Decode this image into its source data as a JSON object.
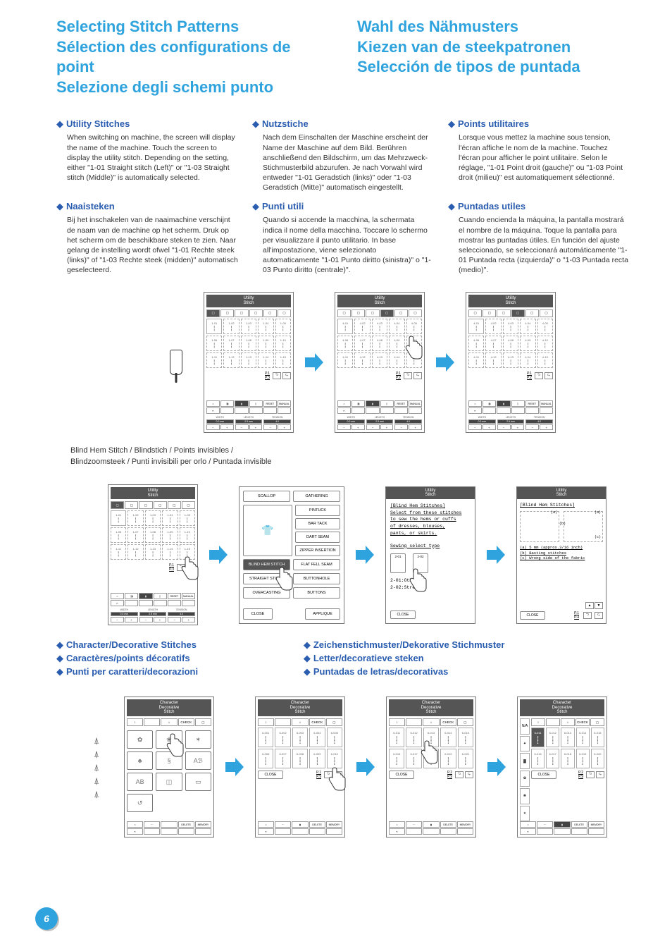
{
  "colors": {
    "header_blue": "#2ea3dd",
    "heading_blue": "#2a5db0",
    "accent_circle": "#bde4f4",
    "arrow_fill": "#2ea3dd",
    "text": "#333333",
    "border": "#777777"
  },
  "page_number": "6",
  "header": {
    "left": [
      "Selecting Stitch Patterns",
      "Sélection des configurations de point",
      "Selezione degli schemi punto"
    ],
    "right": [
      "Wahl des Nähmusters",
      "Kiezen van de steekpatronen",
      "Selección de tipos de puntada"
    ]
  },
  "utility": {
    "en": {
      "title": "Utility Stitches",
      "body": "When switching on machine, the screen will display the name of the machine. Touch the screen to display the utility stitch. Depending on the setting, either \"1-01 Straight stitch (Left)\" or \"1-03 Straight stitch (Middle)\" is automatically selected."
    },
    "de": {
      "title": "Nutzstiche",
      "body": "Nach dem Einschalten der Maschine erscheint der Name der Maschine auf dem Bild. Berühren anschließend den Bildschirm, um das Mehrzweck-Stichmusterbild abzurufen. Je nach Vorwahl wird entweder \"1-01 Geradstich (links)\" oder \"1-03 Geradstich (Mitte)\" automatisch eingestellt."
    },
    "fr": {
      "title": "Points utilitaires",
      "body": "Lorsque vous mettez la machine sous tension, l'écran affiche le nom de la machine. Touchez l'écran pour afficher le point utilitaire. Selon le réglage, \"1-01 Point droit (gauche)\" ou \"1-03 Point droit (milieu)\" est automatiquement sélectionné."
    },
    "nl": {
      "title": "Naaisteken",
      "body": "Bij het inschakelen van de naaimachine verschijnt de naam van de machine op het scherm. Druk op het scherm om de beschikbare steken te zien. Naar gelang de instelling wordt ofwel \"1-01 Rechte steek (links)\" of \"1-03 Rechte steek (midden)\" automatisch geselecteerd."
    },
    "it": {
      "title": "Punti utili",
      "body": "Quando si accende la macchina, la schermata indica il nome della macchina. Toccare lo schermo per visualizzare il punto utilitario. In base all'impostazione, viene selezionato automaticamente \"1-01 Punto diritto (sinistra)\" o \"1-03 Punto diritto (centrale)\"."
    },
    "es": {
      "title": "Puntadas utiles",
      "body": "Cuando encienda la máquina, la pantalla mostrará el nombre de la máquina. Toque la pantalla para mostrar las puntadas útiles. En función del ajuste seleccionado, se seleccionará automáticamente \"1-01 Puntada recta (izquierda)\" o \"1-03 Puntada recta (medio)\"."
    }
  },
  "screens_row1": {
    "header": "Utility\nStitch",
    "cells": [
      "1-01",
      "1-02",
      "1-03",
      "1-04",
      "1-05",
      "1-06",
      "1-07",
      "1-08",
      "1-09",
      "1-10",
      "1-11",
      "1-12",
      "1-13",
      "1-14",
      "1-15"
    ],
    "cells2": [
      "4-01",
      "4-02",
      "4-03",
      "4-04",
      "4-05",
      "4-06",
      "4-07",
      "4-08",
      "4-09",
      "4-10",
      "4-11",
      "4-12",
      "4-13",
      "4-14",
      "4-15"
    ],
    "page_a": "P.1\nP.3",
    "page_b": "P.1\nP.2",
    "page_c": "P.1\nP.2",
    "wlt": {
      "w": "WIDTH",
      "l": "LENGTH",
      "t": "TENSION",
      "wv": "0.0",
      "lv": "2.5",
      "tv": "4.0"
    },
    "reset": "RESET",
    "manual": "MANUAL"
  },
  "blindhem_caption": "Blind Hem Stitch / Blindstich / Points invisibles /\nBlindzoomsteek / Punti invisibili per orlo / Puntada invisible",
  "option_screen": {
    "rows": [
      [
        "SCALLOP",
        "GATHERING"
      ],
      [
        "",
        "PINTUCK"
      ],
      [
        "",
        "BAR TACK"
      ],
      [
        "",
        "DART SEAM"
      ],
      [
        "",
        "ZIPPER INSERTION"
      ],
      [
        "BLIND HEM STITCH",
        "FLAT FELL SEAM"
      ],
      [
        "STRAIGHT STITCH",
        "BUTTONHOLE"
      ],
      [
        "OVERCASTING",
        "BUTTONS"
      ]
    ],
    "close": "CLOSE",
    "applique": "APPLIQUE"
  },
  "info_screen": {
    "header": "Utility\nStitch",
    "lines": [
      "[Blind Hem Stitches]",
      "Select from these stitches",
      "to sew the hems or cuffs",
      "of dresses, blouses,",
      "pants, or skirts."
    ],
    "subhead": "Sewing select type",
    "opts": [
      "2-01",
      "2-02"
    ],
    "opt_labels": [
      "2-01:Othe…",
      "2-02:Stret…"
    ],
    "close": "CLOSE"
  },
  "diagram_screen": {
    "header": "Utility\nStitch",
    "title": "[Blind Hem Stitches]",
    "lines": [
      "(a) 5 mm (approx.3/16 inch)",
      "(b) Basting stitches",
      "(c) Wrong side of the fabric"
    ],
    "labels": [
      "(a)",
      "(b)",
      "(c)"
    ],
    "page": "P.1\nP.4",
    "close": "CLOSE"
  },
  "decorative": {
    "left": [
      "Character/Decorative Stitches",
      "Caractères/points décoratifs",
      "Punti per caratteri/decorazioni"
    ],
    "right": [
      "Zeichenstichmuster/Dekorative Stichmuster",
      "Letter/decoratieve steken",
      "Puntadas de letras/decorativas"
    ]
  },
  "deco_screen": {
    "header": "Character\nDecorative\nStitch",
    "close": "CLOSE",
    "delete": "DELETE",
    "memory": "MEMORY",
    "check": "CHECK",
    "pages": [
      "P.1\nP.9",
      "P.1\nP.9",
      "P.2\nP.9",
      "P.2\nP.9"
    ],
    "cells": [
      "6-001",
      "6-002",
      "6-003",
      "6-004",
      "6-005",
      "6-006",
      "6-007",
      "6-008",
      "6-009",
      "6-010"
    ],
    "cells2": [
      "6-011",
      "6-012",
      "6-013",
      "6-014",
      "6-015",
      "6-016",
      "6-017",
      "6-018",
      "6-019",
      "6-020"
    ],
    "menu_glyphs": [
      "✿",
      "❀",
      "✶",
      "♣",
      "§",
      "Aℬ",
      "AB",
      "◫",
      "▭",
      "↺"
    ],
    "side_glyphs": [
      "N/A",
      "✦",
      "▓",
      "✿",
      "❋",
      "✶"
    ]
  }
}
